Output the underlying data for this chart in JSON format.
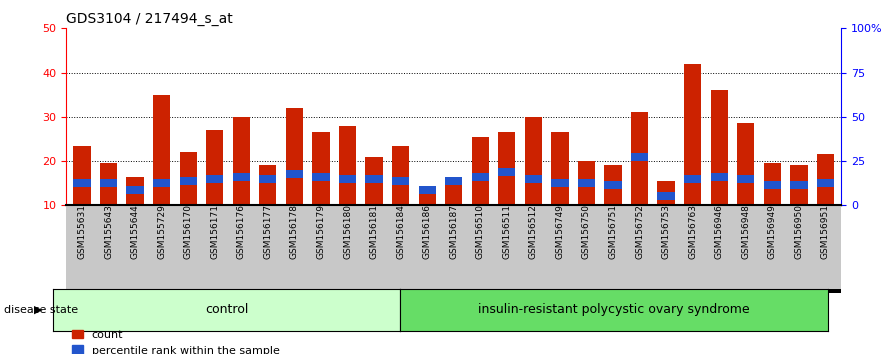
{
  "title": "GDS3104 / 217494_s_at",
  "samples": [
    "GSM155631",
    "GSM155643",
    "GSM155644",
    "GSM155729",
    "GSM156170",
    "GSM156171",
    "GSM156176",
    "GSM156177",
    "GSM156178",
    "GSM156179",
    "GSM156180",
    "GSM156181",
    "GSM156184",
    "GSM156186",
    "GSM156187",
    "GSM156510",
    "GSM156511",
    "GSM156512",
    "GSM156749",
    "GSM156750",
    "GSM156751",
    "GSM156752",
    "GSM156753",
    "GSM156763",
    "GSM156946",
    "GSM156948",
    "GSM156949",
    "GSM156950",
    "GSM156951"
  ],
  "count_values": [
    23.5,
    19.5,
    16.5,
    35.0,
    22.0,
    27.0,
    30.0,
    19.0,
    32.0,
    26.5,
    28.0,
    21.0,
    23.5,
    12.5,
    15.0,
    25.5,
    26.5,
    30.0,
    26.5,
    20.0,
    19.0,
    31.0,
    15.5,
    42.0,
    36.0,
    28.5,
    19.5,
    19.0,
    21.5
  ],
  "percentile_values": [
    15.0,
    15.0,
    13.5,
    15.0,
    15.5,
    16.0,
    16.5,
    16.0,
    17.0,
    16.5,
    16.0,
    16.0,
    15.5,
    13.5,
    15.5,
    16.5,
    17.5,
    16.0,
    15.0,
    15.0,
    14.5,
    21.0,
    12.0,
    16.0,
    16.5,
    16.0,
    14.5,
    14.5,
    15.0
  ],
  "n_control": 13,
  "n_disease": 16,
  "bar_color": "#cc2200",
  "percentile_color": "#2255cc",
  "control_label": "control",
  "disease_label": "insulin-resistant polycystic ovary syndrome",
  "disease_state_label": "disease state",
  "ylim_left": [
    10,
    50
  ],
  "yticks_left": [
    10,
    20,
    30,
    40,
    50
  ],
  "yticks_right": [
    0,
    25,
    50,
    75,
    100
  ],
  "ytick_labels_right": [
    "0",
    "25",
    "50",
    "75",
    "100%"
  ],
  "control_bg": "#ccffcc",
  "disease_bg": "#66dd66",
  "xlabel_bg": "#c8c8c8",
  "count_legend": "count",
  "percentile_legend": "percentile rank within the sample",
  "grid_lines": [
    20,
    30,
    40
  ],
  "blue_bar_height": 1.8
}
